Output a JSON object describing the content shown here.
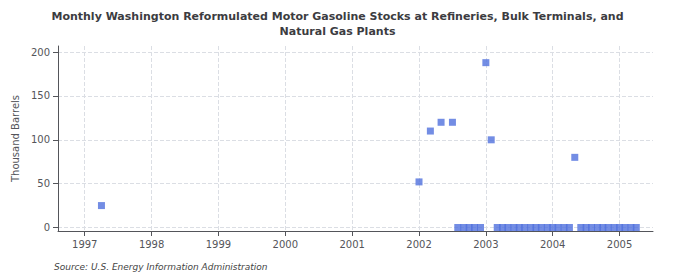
{
  "chart_data": {
    "type": "scatter",
    "title": "Monthly Washington Reformulated Motor Gasoline Stocks at Refineries, Bulk Terminals, and\nNatural Gas Plants",
    "ylabel": "Thousand Barrels",
    "source": "Source: U.S. Energy Information Administration",
    "x": [
      1997.25,
      2002.0,
      2002.17,
      2002.33,
      2002.5,
      2002.58,
      2002.67,
      2002.75,
      2002.83,
      2002.92,
      2003.0,
      2003.08,
      2003.17,
      2003.25,
      2003.33,
      2003.42,
      2003.5,
      2003.58,
      2003.67,
      2003.75,
      2003.83,
      2003.92,
      2004.0,
      2004.08,
      2004.17,
      2004.25,
      2004.33,
      2004.42,
      2004.5,
      2004.58,
      2004.67,
      2004.75,
      2004.83,
      2004.92,
      2005.0,
      2005.08,
      2005.17,
      2005.25
    ],
    "values": [
      25,
      52,
      110,
      120,
      120,
      0,
      0,
      0,
      0,
      0,
      188,
      100,
      0,
      0,
      0,
      0,
      0,
      0,
      0,
      0,
      0,
      0,
      0,
      0,
      0,
      0,
      80,
      0,
      0,
      0,
      0,
      0,
      0,
      0,
      0,
      0,
      0,
      0
    ],
    "xlim": [
      1996.6,
      2005.5
    ],
    "xticks": [
      1997,
      1998,
      1999,
      2000,
      2001,
      2002,
      2003,
      2004,
      2005
    ],
    "ylim": [
      -4,
      207
    ],
    "yticks": [
      0,
      50,
      100,
      150,
      200
    ],
    "marker": "square",
    "grid": true
  }
}
